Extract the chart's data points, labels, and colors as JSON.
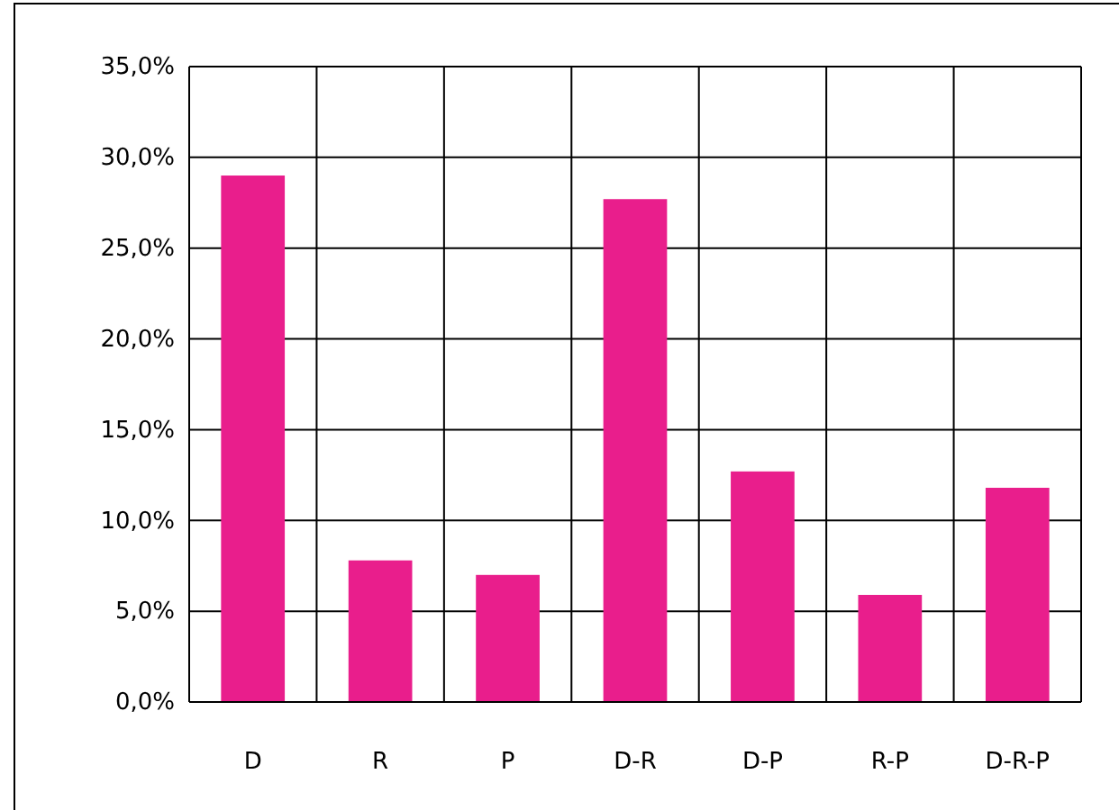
{
  "chart_data": {
    "type": "bar",
    "categories": [
      "D",
      "R",
      "P",
      "D-R",
      "D-P",
      "R-P",
      "D-R-P"
    ],
    "values": [
      29.0,
      7.8,
      7.0,
      27.7,
      12.7,
      5.9,
      11.8
    ],
    "color": "#e91e8c",
    "ylim": [
      0,
      35
    ],
    "yticks": [
      {
        "value": 0,
        "label": "0,0%"
      },
      {
        "value": 5,
        "label": "5,0%"
      },
      {
        "value": 10,
        "label": "10,0%"
      },
      {
        "value": 15,
        "label": "15,0%"
      },
      {
        "value": 20,
        "label": "20,0%"
      },
      {
        "value": 25,
        "label": "25,0%"
      },
      {
        "value": 30,
        "label": "30,0%"
      },
      {
        "value": 35,
        "label": "35,0%"
      }
    ],
    "grid": true
  }
}
